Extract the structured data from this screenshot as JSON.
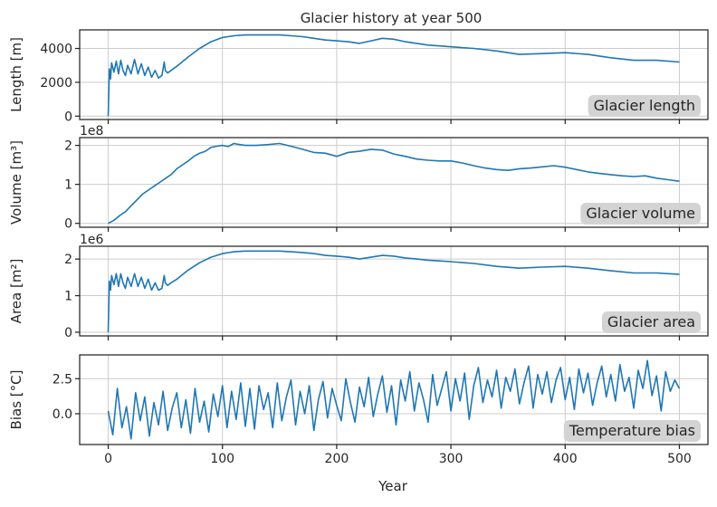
{
  "title": "Glacier history at year 500",
  "xlabel": "Year",
  "xticks": [
    0,
    100,
    200,
    300,
    400,
    500
  ],
  "xlim": [
    -25,
    525
  ],
  "colors": {
    "line": "#1f77b4",
    "badge": "#d3d3d3",
    "grid": "#cccccc"
  },
  "chart_data": [
    {
      "type": "line",
      "ylabel": "Length [m]",
      "ylim": [
        -200,
        5100
      ],
      "yticks": [
        0,
        2000,
        4000
      ],
      "offset_text": "",
      "badge": "Glacier length",
      "x": [
        0,
        1,
        2,
        3,
        5,
        7,
        9,
        11,
        13,
        15,
        17,
        20,
        23,
        26,
        29,
        32,
        35,
        38,
        41,
        44,
        47,
        49,
        50,
        52,
        55,
        60,
        70,
        80,
        90,
        100,
        110,
        120,
        130,
        140,
        150,
        160,
        170,
        180,
        190,
        200,
        210,
        220,
        230,
        240,
        250,
        260,
        270,
        280,
        290,
        300,
        320,
        340,
        360,
        380,
        400,
        420,
        440,
        460,
        480,
        500
      ],
      "y": [
        0,
        2800,
        2200,
        3150,
        2600,
        3250,
        2500,
        3300,
        2700,
        2400,
        3000,
        2500,
        3350,
        2500,
        3100,
        2400,
        2900,
        2300,
        2700,
        2250,
        2400,
        3200,
        2700,
        2550,
        2700,
        2950,
        3500,
        4000,
        4400,
        4650,
        4750,
        4800,
        4800,
        4800,
        4800,
        4750,
        4700,
        4600,
        4500,
        4450,
        4400,
        4300,
        4450,
        4600,
        4550,
        4400,
        4300,
        4200,
        4150,
        4100,
        4000,
        3850,
        3650,
        3700,
        3750,
        3650,
        3450,
        3300,
        3300,
        3200
      ]
    },
    {
      "type": "line",
      "ylabel": "Volume [m³]",
      "ylim": [
        -0.1,
        2.2
      ],
      "yticks": [
        0,
        1,
        2
      ],
      "offset_text": "1e8",
      "badge": "Glacier volume",
      "x": [
        0,
        5,
        10,
        15,
        20,
        25,
        30,
        35,
        40,
        45,
        50,
        55,
        60,
        65,
        70,
        75,
        80,
        85,
        90,
        95,
        100,
        105,
        110,
        115,
        120,
        130,
        140,
        150,
        160,
        170,
        180,
        190,
        200,
        210,
        220,
        230,
        240,
        250,
        260,
        270,
        280,
        290,
        300,
        310,
        320,
        330,
        340,
        350,
        360,
        370,
        380,
        390,
        400,
        410,
        420,
        430,
        440,
        450,
        460,
        470,
        480,
        490,
        500
      ],
      "y": [
        0,
        0.08,
        0.2,
        0.3,
        0.45,
        0.6,
        0.75,
        0.85,
        0.95,
        1.05,
        1.15,
        1.25,
        1.4,
        1.5,
        1.6,
        1.72,
        1.8,
        1.85,
        1.95,
        1.98,
        2.0,
        1.97,
        2.05,
        2.02,
        2.0,
        2.0,
        2.02,
        2.05,
        1.98,
        1.9,
        1.82,
        1.8,
        1.72,
        1.82,
        1.85,
        1.9,
        1.88,
        1.78,
        1.72,
        1.65,
        1.62,
        1.6,
        1.6,
        1.55,
        1.48,
        1.42,
        1.38,
        1.36,
        1.4,
        1.42,
        1.45,
        1.48,
        1.44,
        1.38,
        1.32,
        1.28,
        1.25,
        1.22,
        1.2,
        1.22,
        1.16,
        1.12,
        1.08
      ]
    },
    {
      "type": "line",
      "ylabel": "Area [m²]",
      "ylim": [
        -0.1,
        2.35
      ],
      "yticks": [
        0,
        1,
        2
      ],
      "offset_text": "1e6",
      "badge": "Glacier area",
      "x": [
        0,
        1,
        2,
        3,
        5,
        7,
        9,
        11,
        13,
        15,
        17,
        20,
        23,
        26,
        29,
        32,
        35,
        38,
        41,
        44,
        47,
        49,
        50,
        52,
        55,
        60,
        70,
        80,
        90,
        100,
        110,
        120,
        130,
        140,
        150,
        160,
        170,
        180,
        190,
        200,
        210,
        220,
        230,
        240,
        250,
        260,
        270,
        280,
        290,
        300,
        320,
        340,
        360,
        380,
        400,
        420,
        440,
        460,
        480,
        500
      ],
      "y": [
        0,
        1.4,
        1.15,
        1.55,
        1.3,
        1.6,
        1.25,
        1.6,
        1.35,
        1.2,
        1.5,
        1.25,
        1.6,
        1.25,
        1.5,
        1.2,
        1.45,
        1.15,
        1.35,
        1.15,
        1.2,
        1.55,
        1.35,
        1.28,
        1.35,
        1.45,
        1.7,
        1.9,
        2.05,
        2.15,
        2.2,
        2.22,
        2.22,
        2.22,
        2.22,
        2.2,
        2.18,
        2.15,
        2.1,
        2.08,
        2.05,
        2.0,
        2.05,
        2.1,
        2.08,
        2.03,
        2.0,
        1.97,
        1.95,
        1.93,
        1.88,
        1.8,
        1.75,
        1.78,
        1.8,
        1.75,
        1.68,
        1.62,
        1.62,
        1.58
      ]
    },
    {
      "type": "line",
      "ylabel": "Bias [°C]",
      "ylim": [
        -2.2,
        4.2
      ],
      "yticks": [
        0.0,
        2.5
      ],
      "ytick_labels": [
        "0.0",
        "2.5"
      ],
      "offset_text": "",
      "badge": "Temperature bias",
      "x": [
        0,
        4,
        8,
        12,
        16,
        20,
        24,
        28,
        32,
        36,
        40,
        44,
        48,
        52,
        56,
        60,
        64,
        68,
        72,
        76,
        80,
        84,
        88,
        92,
        96,
        100,
        104,
        108,
        112,
        116,
        120,
        124,
        128,
        132,
        136,
        140,
        144,
        148,
        152,
        156,
        160,
        164,
        168,
        172,
        176,
        180,
        184,
        188,
        192,
        196,
        200,
        204,
        208,
        212,
        216,
        220,
        224,
        228,
        232,
        236,
        240,
        244,
        248,
        252,
        256,
        260,
        264,
        268,
        272,
        276,
        280,
        284,
        288,
        292,
        296,
        300,
        304,
        308,
        312,
        316,
        320,
        324,
        328,
        332,
        336,
        340,
        344,
        348,
        352,
        356,
        360,
        364,
        368,
        372,
        376,
        380,
        384,
        388,
        392,
        396,
        400,
        404,
        408,
        412,
        416,
        420,
        424,
        428,
        432,
        436,
        440,
        444,
        448,
        452,
        456,
        460,
        464,
        468,
        472,
        476,
        480,
        484,
        488,
        492,
        496,
        500
      ],
      "y": [
        0.2,
        -1.5,
        1.8,
        -1.0,
        0.5,
        -1.8,
        1.5,
        -0.5,
        1.2,
        -1.6,
        0.8,
        -0.8,
        1.6,
        -1.2,
        0.4,
        1.5,
        -1.0,
        1.0,
        -1.4,
        1.8,
        -0.6,
        0.9,
        -1.3,
        1.4,
        -0.2,
        2.0,
        -1.0,
        1.6,
        -0.4,
        2.2,
        -0.9,
        1.8,
        -1.1,
        2.0,
        0.3,
        1.5,
        -1.0,
        2.2,
        -0.5,
        1.2,
        2.4,
        -0.8,
        1.6,
        0.0,
        2.0,
        -1.2,
        1.0,
        2.3,
        -0.3,
        1.8,
        0.6,
        -0.5,
        2.5,
        0.8,
        -0.6,
        1.9,
        0.5,
        2.6,
        -0.2,
        1.4,
        2.7,
        0.1,
        2.0,
        -0.8,
        2.4,
        0.9,
        3.0,
        0.2,
        2.2,
        1.0,
        -0.6,
        2.8,
        0.6,
        1.8,
        3.0,
        0.2,
        2.5,
        0.9,
        2.9,
        -0.4,
        2.0,
        3.3,
        0.8,
        2.4,
        1.2,
        3.1,
        0.4,
        2.6,
        1.6,
        3.2,
        0.7,
        2.2,
        3.4,
        0.4,
        2.8,
        1.4,
        3.0,
        0.8,
        2.4,
        3.3,
        1.0,
        2.6,
        0.3,
        3.2,
        1.5,
        2.9,
        0.6,
        2.2,
        3.4,
        1.2,
        2.8,
        0.9,
        3.5,
        1.6,
        2.6,
        0.4,
        3.1,
        1.8,
        3.8,
        1.3,
        2.7,
        0.2,
        3.0,
        1.6,
        2.4,
        1.8
      ]
    }
  ]
}
